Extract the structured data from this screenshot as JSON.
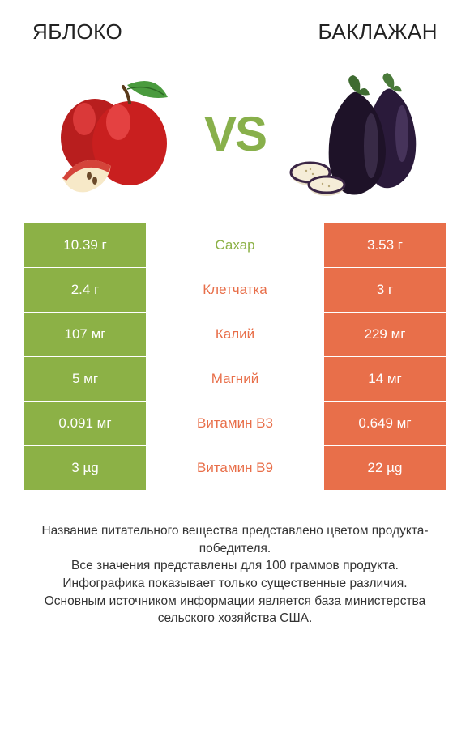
{
  "header": {
    "left_title": "ЯБЛОКО",
    "right_title": "БАКЛАЖАН",
    "vs_label": "VS"
  },
  "colors": {
    "left": "#8cb146",
    "right": "#e86f4a",
    "vs": "#88b04b",
    "background": "#ffffff",
    "text": "#333333"
  },
  "fonts": {
    "title_size": 26,
    "vs_size": 60,
    "cell_size": 17,
    "footer_size": 15.5
  },
  "table": {
    "rows": [
      {
        "left": "10.39 г",
        "label": "Сахар",
        "right": "3.53 г",
        "winner": "left"
      },
      {
        "left": "2.4 г",
        "label": "Клетчатка",
        "right": "3 г",
        "winner": "right"
      },
      {
        "left": "107 мг",
        "label": "Калий",
        "right": "229 мг",
        "winner": "right"
      },
      {
        "left": "5 мг",
        "label": "Магний",
        "right": "14 мг",
        "winner": "right"
      },
      {
        "left": "0.091 мг",
        "label": "Витамин B3",
        "right": "0.649 мг",
        "winner": "right"
      },
      {
        "left": "3 µg",
        "label": "Витамин B9",
        "right": "22 µg",
        "winner": "right"
      }
    ]
  },
  "footer": {
    "line1": "Название питательного вещества представлено цветом продукта-победителя.",
    "line2": "Все значения представлены для 100 граммов продукта.",
    "line3": "Инфографика показывает только существенные различия.",
    "line4": "Основным источником информации является база министерства сельского хозяйства США."
  }
}
